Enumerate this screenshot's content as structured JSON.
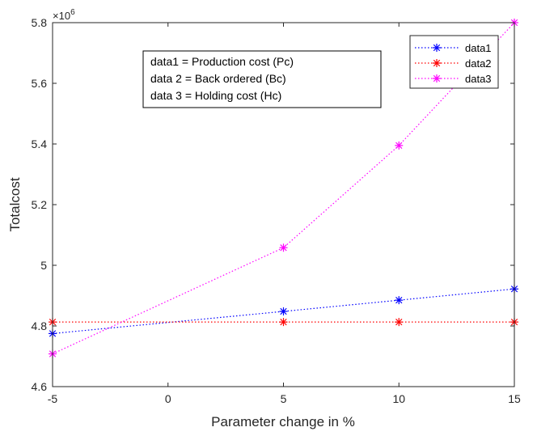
{
  "chart_data": {
    "type": "line",
    "title": "",
    "xlabel": "Parameter change in %",
    "ylabel": "Totalcost",
    "xlim": [
      -5,
      15
    ],
    "ylim": [
      4.6,
      5.8
    ],
    "y_exponent_label": "×10",
    "y_exponent_power": "6",
    "xticks": [
      -5,
      0,
      5,
      10,
      15
    ],
    "xtick_labels": [
      "-5",
      "0",
      "5",
      "10",
      "15"
    ],
    "yticks": [
      4.6,
      4.8,
      5.0,
      5.2,
      5.4,
      5.6,
      5.8
    ],
    "ytick_labels": [
      "4.6",
      "4.8",
      "5",
      "5.2",
      "5.4",
      "5.6",
      "5.8"
    ],
    "grid": false,
    "legend_position": "top-right",
    "series": [
      {
        "name": "data1",
        "color": "#0000ff",
        "x": [
          -5,
          5,
          10,
          15
        ],
        "y": [
          4.775,
          4.848,
          4.885,
          4.922
        ]
      },
      {
        "name": "data2",
        "color": "#ff0000",
        "x": [
          -5,
          5,
          10,
          15
        ],
        "y": [
          4.813,
          4.813,
          4.813,
          4.813
        ]
      },
      {
        "name": "data3",
        "color": "#ff00ff",
        "x": [
          -5,
          5,
          10,
          15
        ],
        "y": [
          4.708,
          5.058,
          5.395,
          5.8
        ]
      }
    ],
    "annotation": {
      "lines": [
        "data1 =  Production cost (Pc)",
        "data 2 = Back ordered (Bc)",
        "data 3 = Holding cost (Hc)"
      ]
    }
  }
}
